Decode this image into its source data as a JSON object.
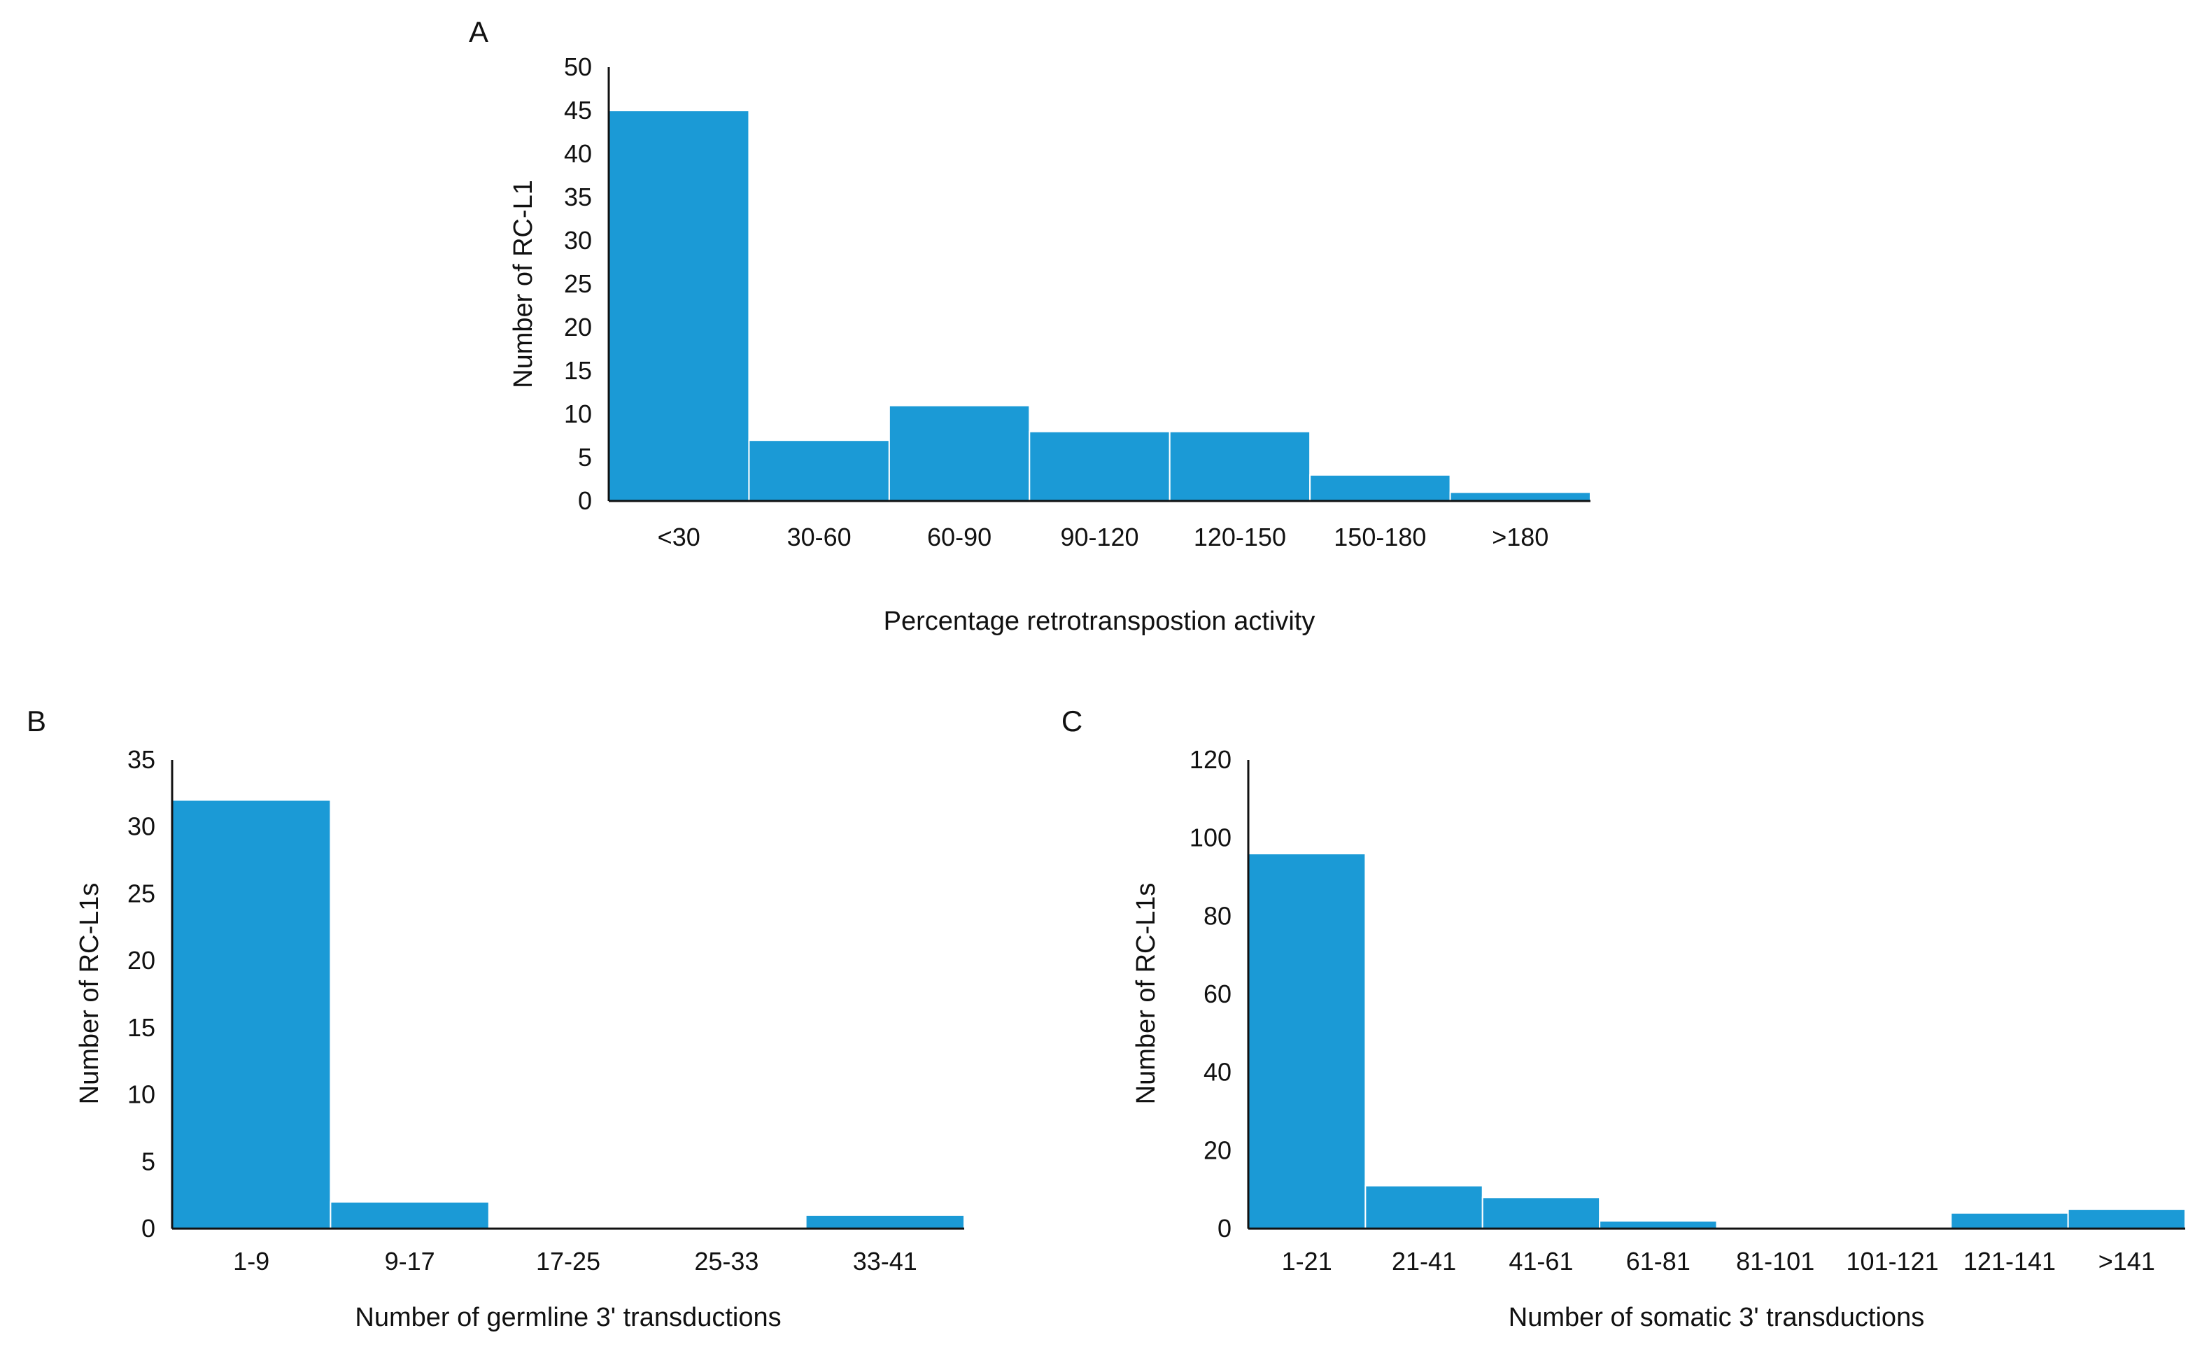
{
  "colors": {
    "bar": "#1b9ad6",
    "bar_edge": "#ffffff",
    "axis": "#111111"
  },
  "chart_data": [
    {
      "panel": "A",
      "type": "bar",
      "categories": [
        "<30",
        "30-60",
        "60-90",
        "90-120",
        "120-150",
        "150-180",
        ">180"
      ],
      "values": [
        45,
        7,
        11,
        8,
        8,
        3,
        1
      ],
      "xlabel": "Percentage retrotranspostion activity",
      "ylabel": "Number of RC-L1",
      "ylim": [
        0,
        50
      ],
      "yticks": [
        "0",
        "5",
        "10",
        "15",
        "20",
        "25",
        "30",
        "35",
        "40",
        "45",
        "50"
      ]
    },
    {
      "panel": "B",
      "type": "bar",
      "categories": [
        "1-9",
        "9-17",
        "17-25",
        "25-33",
        "33-41"
      ],
      "values": [
        32,
        2,
        0,
        0,
        1
      ],
      "xlabel": "Number of germline 3' transductions",
      "ylabel": "Number of RC-L1s",
      "ylim": [
        0,
        35
      ],
      "yticks": [
        "0",
        "5",
        "10",
        "15",
        "20",
        "25",
        "30",
        "35"
      ]
    },
    {
      "panel": "C",
      "type": "bar",
      "categories": [
        "1-21",
        "21-41",
        "41-61",
        "61-81",
        "81-101",
        "101-121",
        "121-141",
        ">141"
      ],
      "values": [
        96,
        11,
        8,
        2,
        0,
        0,
        4,
        5
      ],
      "xlabel": "Number of somatic 3' transductions",
      "ylabel": "Number of RC-L1s",
      "ylim": [
        0,
        120
      ],
      "yticks": [
        "0",
        "20",
        "40",
        "60",
        "80",
        "100",
        "120"
      ]
    }
  ]
}
